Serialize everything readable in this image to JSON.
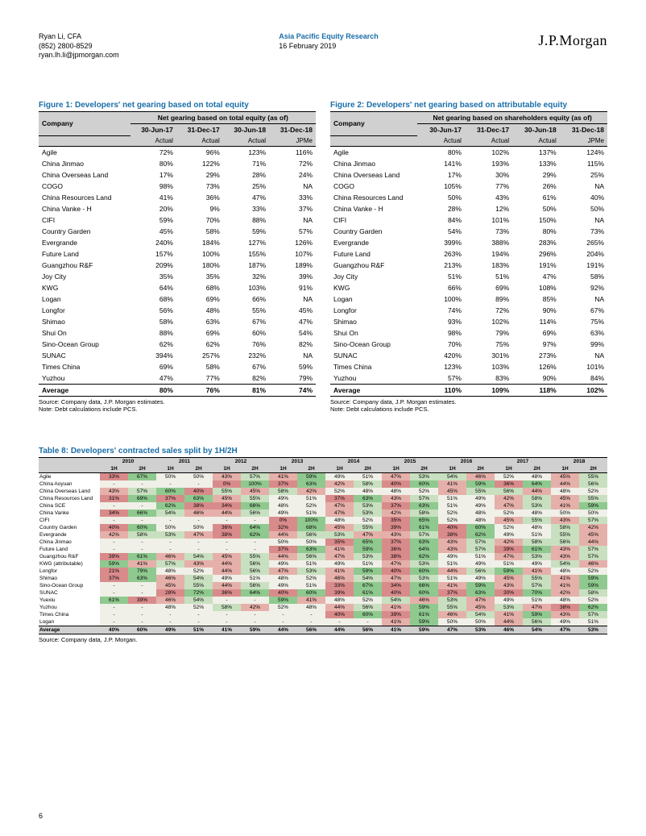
{
  "header": {
    "analyst": "Ryan Li, CFA",
    "phone": "(852) 2800-8529",
    "email": "ryan.lh.li@jpmorgan.com",
    "dept": "Asia Pacific Equity Research",
    "date": "16 February 2019",
    "logo": "J.P.Morgan"
  },
  "page_num": "6",
  "fig1": {
    "title": "Figure 1: Developers' net gearing based on total equity",
    "group_header": "Net gearing based on total equity (as of)",
    "col_company": "Company",
    "cols": [
      "30-Jun-17",
      "31-Dec-17",
      "30-Jun-18",
      "31-Dec-18"
    ],
    "sub": [
      "Actual",
      "Actual",
      "Actual",
      "JPMe"
    ],
    "rows": [
      {
        "c": "Agile",
        "v": [
          "72%",
          "96%",
          "123%",
          "116%"
        ]
      },
      {
        "c": "China Jinmao",
        "v": [
          "80%",
          "122%",
          "71%",
          "72%"
        ]
      },
      {
        "c": "China Overseas Land",
        "v": [
          "17%",
          "29%",
          "28%",
          "24%"
        ]
      },
      {
        "c": "COGO",
        "v": [
          "98%",
          "73%",
          "25%",
          "NA"
        ]
      },
      {
        "c": "China Resources Land",
        "v": [
          "41%",
          "36%",
          "47%",
          "33%"
        ]
      },
      {
        "c": "China Vanke - H",
        "v": [
          "20%",
          "9%",
          "33%",
          "37%"
        ]
      },
      {
        "c": "CIFI",
        "v": [
          "59%",
          "70%",
          "88%",
          "NA"
        ]
      },
      {
        "c": "Country Garden",
        "v": [
          "45%",
          "58%",
          "59%",
          "57%"
        ]
      },
      {
        "c": "Evergrande",
        "v": [
          "240%",
          "184%",
          "127%",
          "126%"
        ]
      },
      {
        "c": "Future Land",
        "v": [
          "157%",
          "100%",
          "155%",
          "107%"
        ]
      },
      {
        "c": "Guangzhou R&F",
        "v": [
          "209%",
          "180%",
          "187%",
          "189%"
        ]
      },
      {
        "c": "Joy City",
        "v": [
          "35%",
          "35%",
          "32%",
          "39%"
        ]
      },
      {
        "c": "KWG",
        "v": [
          "64%",
          "68%",
          "103%",
          "91%"
        ]
      },
      {
        "c": "Logan",
        "v": [
          "68%",
          "69%",
          "66%",
          "NA"
        ]
      },
      {
        "c": "Longfor",
        "v": [
          "56%",
          "48%",
          "55%",
          "45%"
        ]
      },
      {
        "c": "Shimao",
        "v": [
          "58%",
          "63%",
          "67%",
          "47%"
        ]
      },
      {
        "c": "Shui On",
        "v": [
          "88%",
          "69%",
          "60%",
          "54%"
        ]
      },
      {
        "c": "Sino-Ocean Group",
        "v": [
          "62%",
          "62%",
          "76%",
          "82%"
        ]
      },
      {
        "c": "SUNAC",
        "v": [
          "394%",
          "257%",
          "232%",
          "NA"
        ]
      },
      {
        "c": "Times China",
        "v": [
          "69%",
          "58%",
          "67%",
          "59%"
        ]
      },
      {
        "c": "Yuzhou",
        "v": [
          "47%",
          "77%",
          "82%",
          "79%"
        ]
      }
    ],
    "avg": {
      "c": "Average",
      "v": [
        "80%",
        "76%",
        "81%",
        "74%"
      ]
    },
    "source": "Source: Company data, J.P. Morgan estimates.",
    "note": "Note: Debt calculations include PCS."
  },
  "fig2": {
    "title": "Figure 2: Developers' net gearing based on attributable equity",
    "group_header": "Net gearing based on shareholders equity (as of)",
    "col_company": "Company",
    "cols": [
      "30-Jun-17",
      "31-Dec-17",
      "30-Jun-18",
      "31-Dec-18"
    ],
    "sub": [
      "Actual",
      "Actual",
      "Actual",
      "JPMe"
    ],
    "rows": [
      {
        "c": "Agile",
        "v": [
          "80%",
          "102%",
          "137%",
          "124%"
        ]
      },
      {
        "c": "China Jinmao",
        "v": [
          "141%",
          "193%",
          "133%",
          "115%"
        ]
      },
      {
        "c": "China Overseas Land",
        "v": [
          "17%",
          "30%",
          "29%",
          "25%"
        ]
      },
      {
        "c": "COGO",
        "v": [
          "105%",
          "77%",
          "26%",
          "NA"
        ]
      },
      {
        "c": "China Resources Land",
        "v": [
          "50%",
          "43%",
          "61%",
          "40%"
        ]
      },
      {
        "c": "China Vanke - H",
        "v": [
          "28%",
          "12%",
          "50%",
          "50%"
        ]
      },
      {
        "c": "CIFI",
        "v": [
          "84%",
          "101%",
          "150%",
          "NA"
        ]
      },
      {
        "c": "Country Garden",
        "v": [
          "54%",
          "73%",
          "80%",
          "73%"
        ]
      },
      {
        "c": "Evergrande",
        "v": [
          "399%",
          "388%",
          "283%",
          "265%"
        ]
      },
      {
        "c": "Future Land",
        "v": [
          "263%",
          "194%",
          "296%",
          "204%"
        ]
      },
      {
        "c": "Guangzhou R&F",
        "v": [
          "213%",
          "183%",
          "191%",
          "191%"
        ]
      },
      {
        "c": "Joy City",
        "v": [
          "51%",
          "51%",
          "47%",
          "58%"
        ]
      },
      {
        "c": "KWG",
        "v": [
          "66%",
          "69%",
          "108%",
          "92%"
        ]
      },
      {
        "c": "Logan",
        "v": [
          "100%",
          "89%",
          "85%",
          "NA"
        ]
      },
      {
        "c": "Longfor",
        "v": [
          "74%",
          "72%",
          "90%",
          "67%"
        ]
      },
      {
        "c": "Shimao",
        "v": [
          "93%",
          "102%",
          "114%",
          "75%"
        ]
      },
      {
        "c": "Shui On",
        "v": [
          "98%",
          "79%",
          "69%",
          "63%"
        ]
      },
      {
        "c": "Sino-Ocean Group",
        "v": [
          "70%",
          "75%",
          "97%",
          "99%"
        ]
      },
      {
        "c": "SUNAC",
        "v": [
          "420%",
          "301%",
          "273%",
          "NA"
        ]
      },
      {
        "c": "Times China",
        "v": [
          "123%",
          "103%",
          "126%",
          "101%"
        ]
      },
      {
        "c": "Yuzhou",
        "v": [
          "57%",
          "83%",
          "90%",
          "84%"
        ]
      }
    ],
    "avg": {
      "c": "Average",
      "v": [
        "110%",
        "109%",
        "118%",
        "102%"
      ]
    },
    "source": "Source: Company data, J.P. Morgan estimates.",
    "note": "Note: Debt calculations include PCS."
  },
  "tbl8": {
    "title": "Table 8: Developers' contracted sales split by 1H/2H",
    "years": [
      "2010",
      "2011",
      "2012",
      "2013",
      "2014",
      "2015",
      "2016",
      "2017",
      "2018"
    ],
    "halves": [
      "1H",
      "2H"
    ],
    "source": "Source: Company data, J.P. Morgan.",
    "heat_colors": {
      "low": "#d98b8b",
      "mid_low": "#e6b0aa",
      "neutral": "#f0f0e8",
      "mid_high": "#c8e0c0",
      "high": "#8fc98f",
      "na": "#f0f0e8"
    },
    "threshold_comment": "cells colored red<45, light-red 45-49, neutral 50, light-green 51-55, green>55; dash = NA neutral",
    "rows": [
      {
        "c": "Agile",
        "v": [
          "33%",
          "67%",
          "50%",
          "50%",
          "43%",
          "57%",
          "41%",
          "59%",
          "49%",
          "51%",
          "47%",
          "53%",
          "54%",
          "46%",
          "52%",
          "48%",
          "45%",
          "55%"
        ]
      },
      {
        "c": "China Aoyuan",
        "v": [
          "-",
          "-",
          "-",
          "-",
          "0%",
          "100%",
          "37%",
          "63%",
          "42%",
          "58%",
          "40%",
          "60%",
          "41%",
          "59%",
          "36%",
          "64%",
          "44%",
          "56%"
        ]
      },
      {
        "c": "China Overseas Land",
        "v": [
          "43%",
          "57%",
          "60%",
          "40%",
          "55%",
          "45%",
          "58%",
          "42%",
          "52%",
          "48%",
          "48%",
          "52%",
          "45%",
          "55%",
          "56%",
          "44%",
          "48%",
          "52%"
        ]
      },
      {
        "c": "China Resources Land",
        "v": [
          "31%",
          "69%",
          "37%",
          "63%",
          "45%",
          "55%",
          "49%",
          "51%",
          "37%",
          "63%",
          "43%",
          "57%",
          "51%",
          "49%",
          "42%",
          "58%",
          "45%",
          "55%"
        ]
      },
      {
        "c": "China SCE",
        "v": [
          "-",
          "-",
          "62%",
          "38%",
          "34%",
          "66%",
          "48%",
          "52%",
          "47%",
          "53%",
          "37%",
          "63%",
          "51%",
          "49%",
          "47%",
          "53%",
          "41%",
          "59%"
        ]
      },
      {
        "c": "China Vanke",
        "v": [
          "34%",
          "66%",
          "54%",
          "46%",
          "44%",
          "56%",
          "49%",
          "51%",
          "47%",
          "53%",
          "42%",
          "58%",
          "52%",
          "48%",
          "52%",
          "48%",
          "50%",
          "50%"
        ]
      },
      {
        "c": "CIFI",
        "v": [
          "-",
          "-",
          "-",
          "-",
          "-",
          "-",
          "0%",
          "100%",
          "48%",
          "52%",
          "35%",
          "65%",
          "52%",
          "48%",
          "45%",
          "55%",
          "43%",
          "57%"
        ]
      },
      {
        "c": "Country Garden",
        "v": [
          "40%",
          "60%",
          "50%",
          "50%",
          "36%",
          "64%",
          "32%",
          "68%",
          "45%",
          "55%",
          "39%",
          "61%",
          "40%",
          "60%",
          "52%",
          "48%",
          "58%",
          "42%"
        ]
      },
      {
        "c": "Evergrande",
        "v": [
          "42%",
          "58%",
          "53%",
          "47%",
          "38%",
          "62%",
          "44%",
          "56%",
          "53%",
          "47%",
          "43%",
          "57%",
          "38%",
          "62%",
          "49%",
          "51%",
          "55%",
          "45%"
        ]
      },
      {
        "c": "China Jinmao",
        "v": [
          "-",
          "-",
          "-",
          "-",
          "-",
          "-",
          "50%",
          "50%",
          "35%",
          "65%",
          "37%",
          "63%",
          "43%",
          "57%",
          "42%",
          "58%",
          "56%",
          "44%"
        ]
      },
      {
        "c": "Future Land",
        "v": [
          "-",
          "-",
          "-",
          "-",
          "-",
          "-",
          "37%",
          "63%",
          "41%",
          "59%",
          "36%",
          "64%",
          "43%",
          "57%",
          "39%",
          "61%",
          "43%",
          "57%"
        ]
      },
      {
        "c": "Guangzhou R&F",
        "v": [
          "39%",
          "61%",
          "46%",
          "54%",
          "45%",
          "55%",
          "44%",
          "56%",
          "47%",
          "53%",
          "38%",
          "62%",
          "49%",
          "51%",
          "47%",
          "53%",
          "43%",
          "57%"
        ]
      },
      {
        "c": "KWG (attributable)",
        "v": [
          "59%",
          "41%",
          "57%",
          "43%",
          "44%",
          "56%",
          "49%",
          "51%",
          "49%",
          "51%",
          "47%",
          "53%",
          "51%",
          "49%",
          "51%",
          "49%",
          "54%",
          "46%"
        ]
      },
      {
        "c": "Longfor",
        "v": [
          "21%",
          "79%",
          "48%",
          "52%",
          "44%",
          "56%",
          "47%",
          "53%",
          "41%",
          "59%",
          "40%",
          "60%",
          "44%",
          "56%",
          "59%",
          "41%",
          "48%",
          "52%"
        ]
      },
      {
        "c": "Shimao",
        "v": [
          "37%",
          "63%",
          "46%",
          "54%",
          "49%",
          "51%",
          "48%",
          "52%",
          "46%",
          "54%",
          "47%",
          "53%",
          "51%",
          "49%",
          "45%",
          "55%",
          "41%",
          "59%"
        ]
      },
      {
        "c": "Sino-Ocean Group",
        "v": [
          "-",
          "-",
          "45%",
          "55%",
          "44%",
          "56%",
          "49%",
          "51%",
          "33%",
          "67%",
          "34%",
          "66%",
          "41%",
          "59%",
          "43%",
          "57%",
          "41%",
          "59%"
        ]
      },
      {
        "c": "SUNAC",
        "v": [
          "-",
          "-",
          "28%",
          "72%",
          "36%",
          "64%",
          "40%",
          "60%",
          "39%",
          "61%",
          "40%",
          "60%",
          "37%",
          "63%",
          "30%",
          "70%",
          "42%",
          "58%"
        ]
      },
      {
        "c": "Yuexiu",
        "v": [
          "61%",
          "39%",
          "46%",
          "54%",
          "-",
          "-",
          "59%",
          "41%",
          "48%",
          "52%",
          "54%",
          "46%",
          "53%",
          "47%",
          "49%",
          "51%",
          "48%",
          "52%"
        ]
      },
      {
        "c": "Yuzhou",
        "v": [
          "-",
          "-",
          "48%",
          "52%",
          "58%",
          "42%",
          "52%",
          "48%",
          "44%",
          "56%",
          "41%",
          "59%",
          "55%",
          "45%",
          "53%",
          "47%",
          "38%",
          "62%"
        ]
      },
      {
        "c": "Times China",
        "v": [
          "-",
          "-",
          "-",
          "-",
          "-",
          "-",
          "-",
          "-",
          "40%",
          "60%",
          "39%",
          "61%",
          "46%",
          "54%",
          "41%",
          "59%",
          "43%",
          "57%"
        ]
      },
      {
        "c": "Logan",
        "v": [
          "-",
          "-",
          "-",
          "-",
          "-",
          "-",
          "-",
          "-",
          "-",
          "-",
          "41%",
          "59%",
          "50%",
          "50%",
          "44%",
          "56%",
          "49%",
          "51%"
        ]
      }
    ],
    "avg": {
      "c": "Average",
      "v": [
        "40%",
        "60%",
        "49%",
        "51%",
        "41%",
        "59%",
        "44%",
        "56%",
        "44%",
        "56%",
        "41%",
        "59%",
        "47%",
        "53%",
        "46%",
        "54%",
        "47%",
        "53%"
      ]
    }
  }
}
